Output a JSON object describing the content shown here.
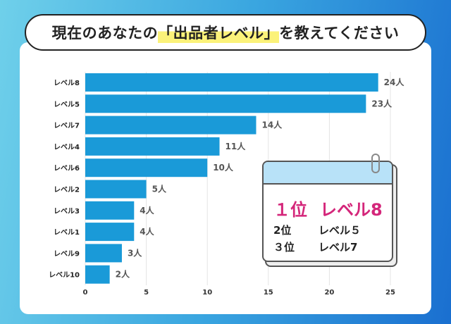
{
  "title": {
    "before": "現在のあなたの",
    "highlight": "「出品者レベル」",
    "after": "を教えてください"
  },
  "chart_data": {
    "type": "bar",
    "orientation": "horizontal",
    "categories": [
      "レベル8",
      "レベル5",
      "レベル7",
      "レベル4",
      "レベル6",
      "レベル2",
      "レベル3",
      "レベル1",
      "レベル9",
      "レベル10"
    ],
    "values": [
      24,
      23,
      14,
      11,
      10,
      5,
      4,
      4,
      3,
      2
    ],
    "value_suffix": "人",
    "xlim": [
      0,
      25
    ],
    "xticks": [
      0,
      5,
      10,
      15,
      20,
      25
    ],
    "grid": true,
    "bar_color": "#1a9ad8"
  },
  "ranking": {
    "first": {
      "rank": "１位",
      "label": "レベル8"
    },
    "second": {
      "rank": "2位",
      "label": "レベル５"
    },
    "third": {
      "rank": "３位",
      "label": "レベル7"
    },
    "accent": "#d4267a"
  }
}
